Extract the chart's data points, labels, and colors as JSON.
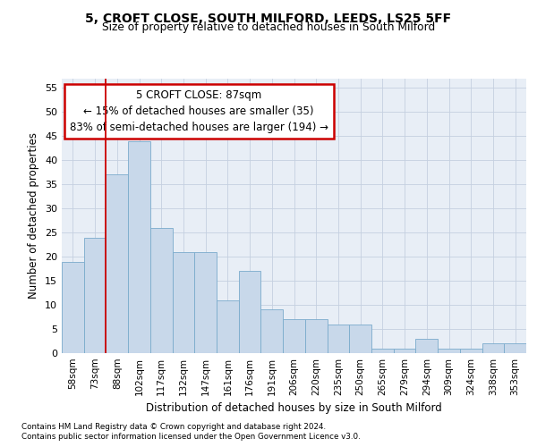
{
  "title1": "5, CROFT CLOSE, SOUTH MILFORD, LEEDS, LS25 5FF",
  "title2": "Size of property relative to detached houses in South Milford",
  "xlabel": "Distribution of detached houses by size in South Milford",
  "ylabel": "Number of detached properties",
  "bar_labels": [
    "58sqm",
    "73sqm",
    "88sqm",
    "102sqm",
    "117sqm",
    "132sqm",
    "147sqm",
    "161sqm",
    "176sqm",
    "191sqm",
    "206sqm",
    "220sqm",
    "235sqm",
    "250sqm",
    "265sqm",
    "279sqm",
    "294sqm",
    "309sqm",
    "324sqm",
    "338sqm",
    "353sqm"
  ],
  "bar_values": [
    19,
    24,
    37,
    44,
    26,
    21,
    21,
    11,
    17,
    9,
    7,
    7,
    6,
    6,
    1,
    1,
    3,
    1,
    1,
    2,
    2
  ],
  "bar_color": "#c8d8ea",
  "bar_edge_color": "#7aabcc",
  "grid_color": "#c5d0e0",
  "background_color": "#e8eef6",
  "vline_color": "#cc0000",
  "vline_x_index": 2,
  "annotation_line1": "5 CROFT CLOSE: 87sqm",
  "annotation_line2": "← 15% of detached houses are smaller (35)",
  "annotation_line3": "83% of semi-detached houses are larger (194) →",
  "annotation_box_color": "#ffffff",
  "annotation_box_edge": "#cc0000",
  "ylim": [
    0,
    57
  ],
  "yticks": [
    0,
    5,
    10,
    15,
    20,
    25,
    30,
    35,
    40,
    45,
    50,
    55
  ],
  "footnote1": "Contains HM Land Registry data © Crown copyright and database right 2024.",
  "footnote2": "Contains public sector information licensed under the Open Government Licence v3.0."
}
